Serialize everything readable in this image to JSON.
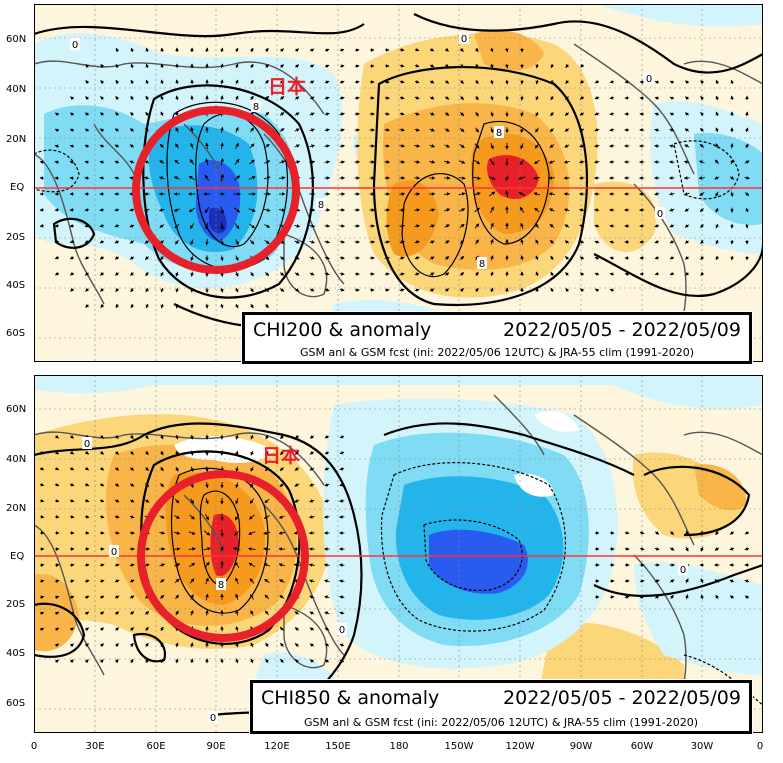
{
  "panels": [
    {
      "id": "chi200",
      "title": "CHI200 & anomaly",
      "date_range": "2022/05/05 - 2022/05/09",
      "subtitle": "GSM anl & GSM fcst (ini: 2022/05/06 12UTC) & JRA-55 clim (1991-2020)",
      "region_label": "日本",
      "contour_labels": [
        "0",
        "0",
        "8",
        "8",
        "8",
        "0",
        "8",
        "0"
      ]
    },
    {
      "id": "chi850",
      "title": "CHI850 & anomaly",
      "date_range": "2022/05/05 - 2022/05/09",
      "subtitle": "GSM anl & GSM fcst (ini: 2022/05/06 12UTC) & JRA-55 clim (1991-2020)",
      "region_label": "日本",
      "contour_labels": [
        "0",
        "0",
        "8",
        "0",
        "0",
        "0"
      ]
    }
  ],
  "lat_labels": [
    "60N",
    "40N",
    "20N",
    "EQ",
    "20S",
    "40S",
    "60S"
  ],
  "lon_labels": [
    "0",
    "30E",
    "60E",
    "90E",
    "120E",
    "150E",
    "180",
    "150W",
    "120W",
    "90W",
    "60W",
    "30W",
    "0"
  ],
  "colors": {
    "positive_strong": "#e8202a",
    "positive_mid": "#f59a1c",
    "positive_light": "#fbd77a",
    "positive_pale": "#fff2c0",
    "negative_pale": "#d4f4fb",
    "negative_light": "#7fdcf4",
    "negative_mid": "#24b4ec",
    "negative_strong": "#2a5bf0",
    "highlight_circle": "#e8202a",
    "equator_line": "#ff3333"
  }
}
